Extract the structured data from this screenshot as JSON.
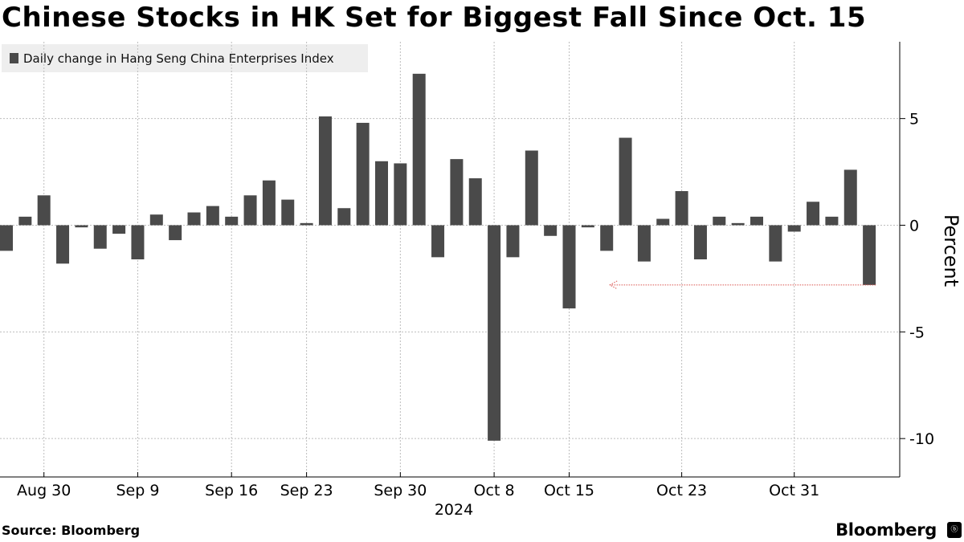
{
  "title": "Chinese Stocks in HK Set for Biggest Fall Since Oct. 15",
  "source": "Source: Bloomberg",
  "brand": "Bloomberg",
  "brand_badge": "ⓑ",
  "colors": {
    "bar": "#4a4a4a",
    "grid": "#bdbdbd",
    "arrow": "#d9534f"
  },
  "chart_data": {
    "type": "bar",
    "legend": [
      "Daily change in Hang Seng China Enterprises Index"
    ],
    "legend_position": "top-left",
    "ylabel": "Percent",
    "xlabel": "",
    "year_label": "2024",
    "ylim": [
      -11.8,
      8.6
    ],
    "yticks": [
      5,
      0,
      -5,
      -10
    ],
    "grid": true,
    "x_tick_labels": [
      "Aug 30",
      "Sep 9",
      "Sep 16",
      "Sep 23",
      "Sep 30",
      "Oct 8",
      "Oct 15",
      "Oct 23",
      "Oct 31"
    ],
    "x_tick_positions": [
      2,
      7,
      12,
      16,
      21,
      26,
      30,
      36,
      42
    ],
    "series": [
      {
        "name": "Daily change in Hang Seng China Enterprises Index",
        "values": [
          -1.2,
          0.4,
          1.4,
          -1.8,
          -0.1,
          -1.1,
          -0.4,
          -1.6,
          0.5,
          -0.7,
          0.6,
          0.9,
          0.4,
          1.4,
          2.1,
          1.2,
          0.1,
          5.1,
          0.8,
          4.8,
          3.0,
          2.9,
          7.1,
          -1.5,
          3.1,
          2.2,
          -10.1,
          -1.5,
          3.5,
          -0.5,
          -3.9,
          -0.1,
          -1.2,
          4.1,
          -1.7,
          0.3,
          1.6,
          -1.6,
          0.4,
          0.1,
          0.4,
          -1.7,
          -0.3,
          1.1,
          0.4,
          2.6,
          -2.8
        ]
      }
    ],
    "annotation": {
      "type": "arrow",
      "from_index": 46,
      "to_index": 32,
      "value": -2.8
    }
  }
}
